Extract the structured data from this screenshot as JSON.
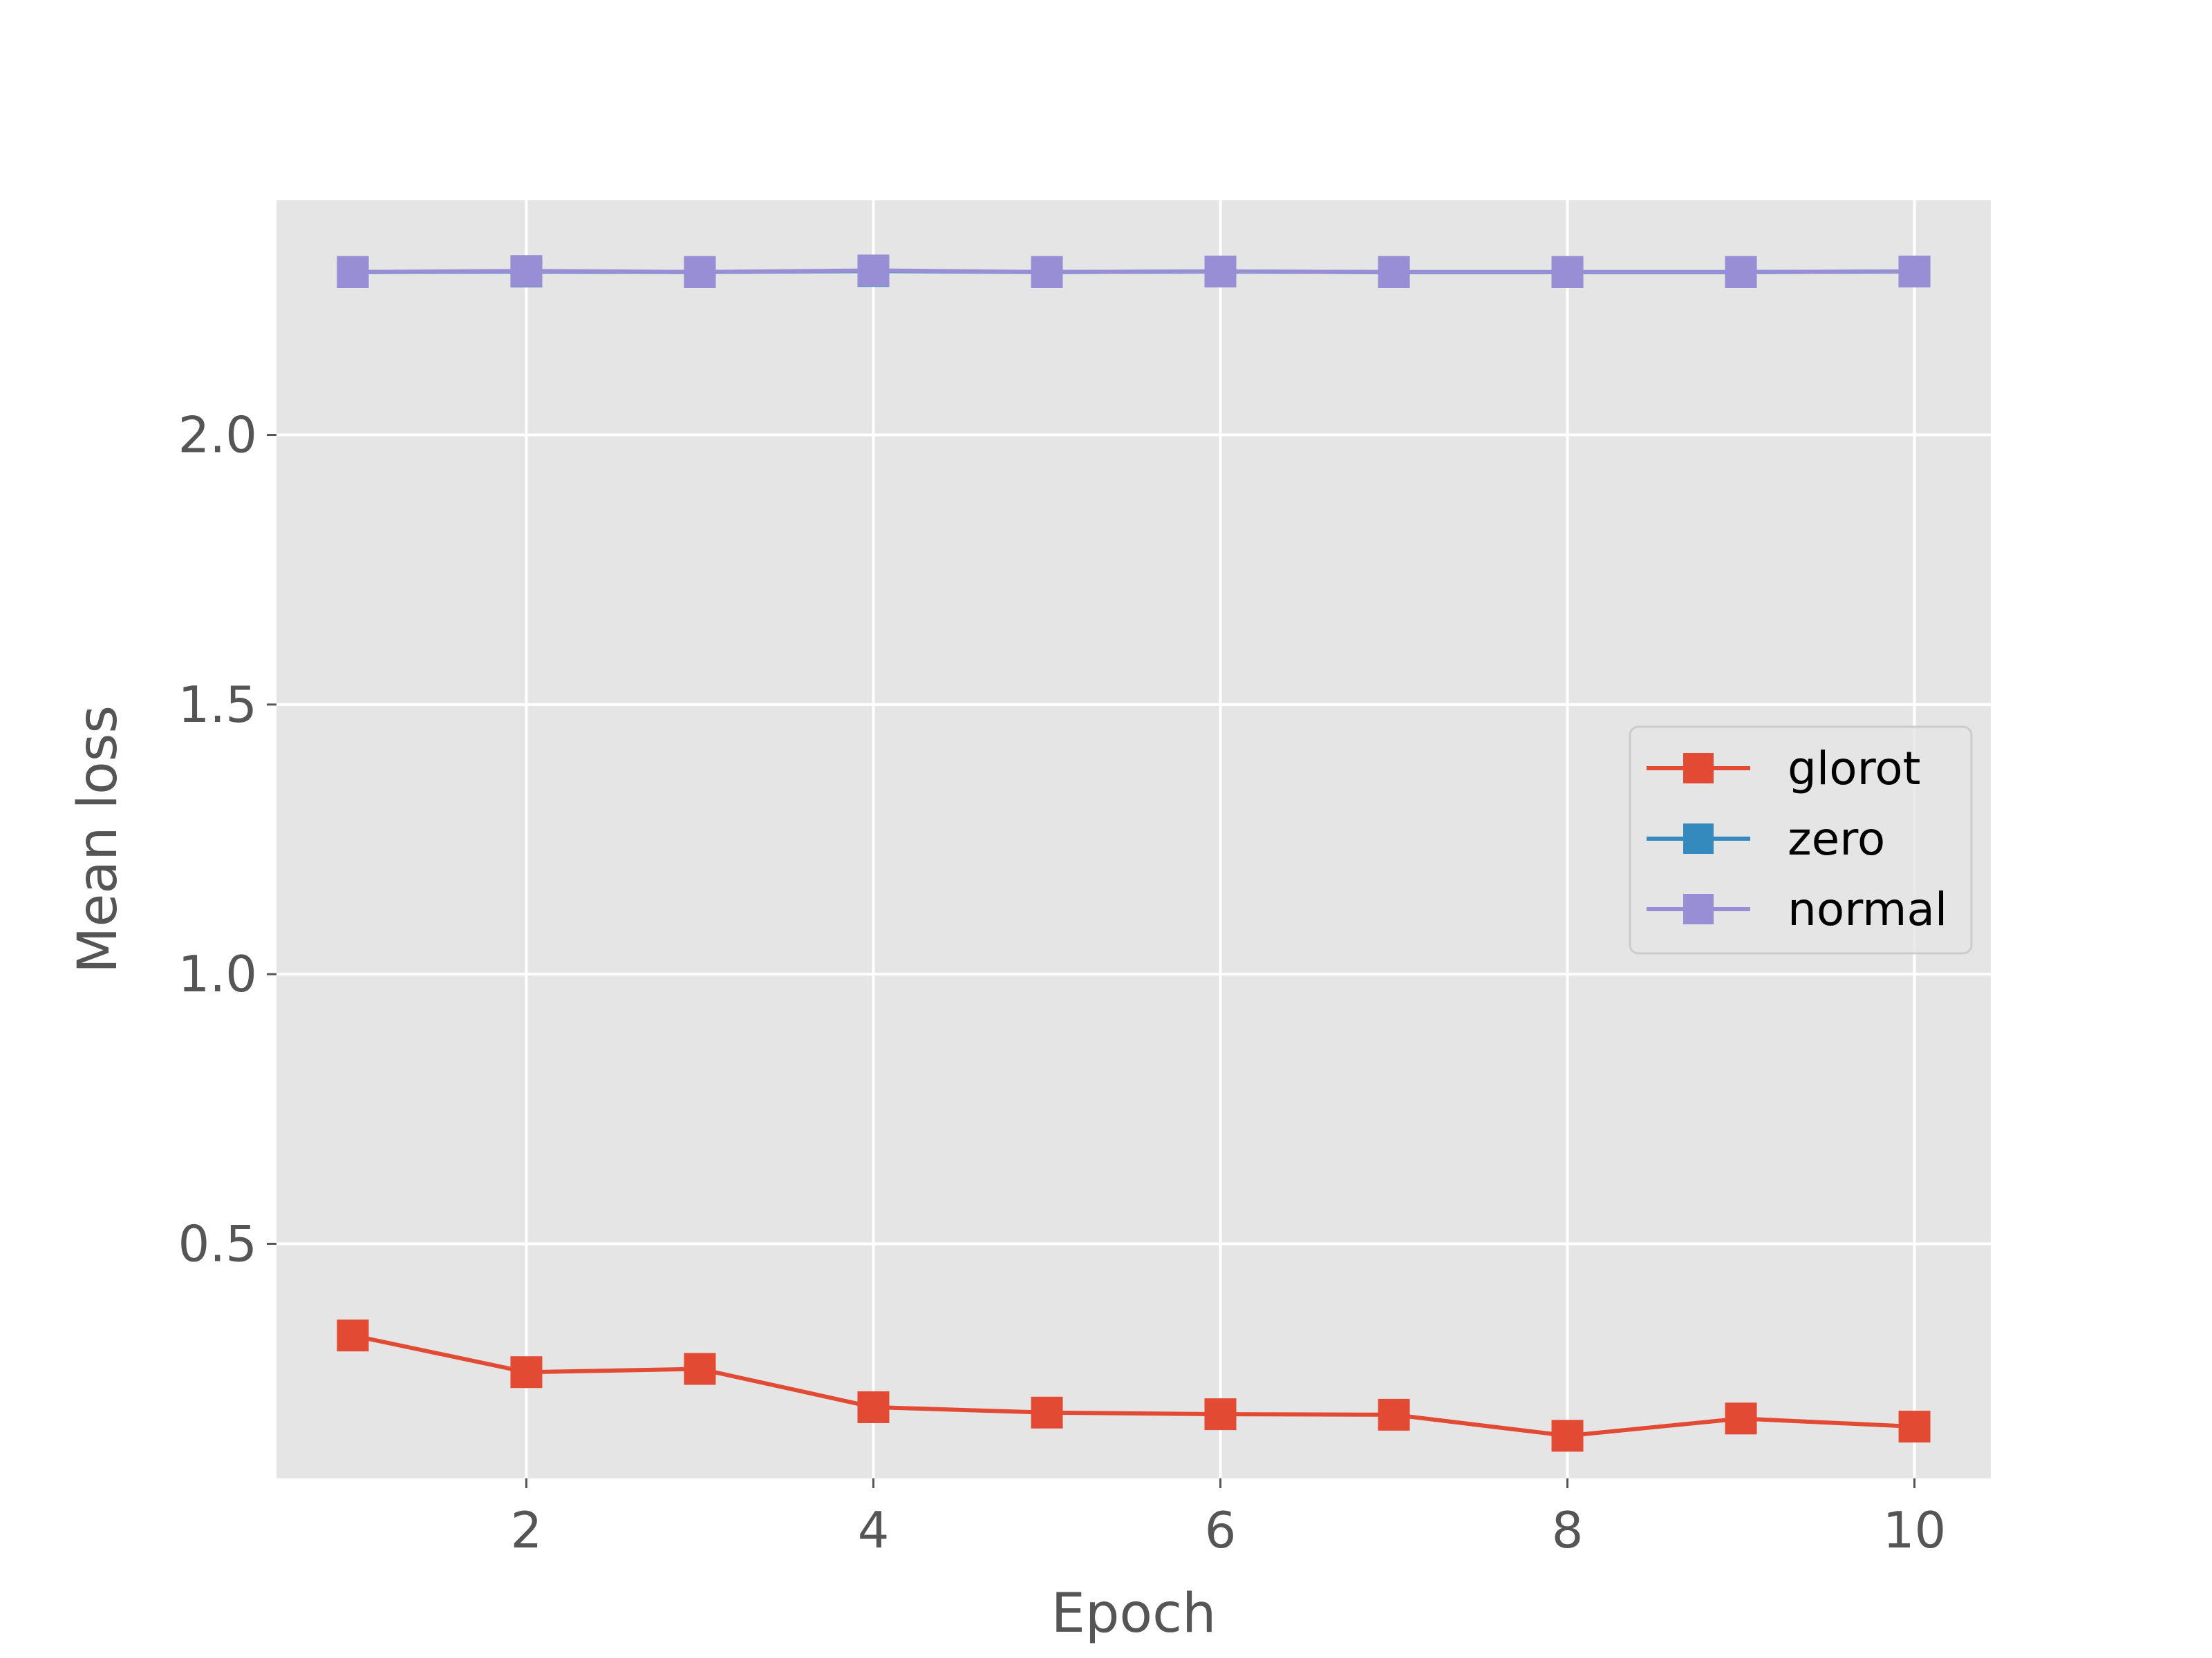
{
  "chart_data": {
    "type": "line",
    "title": "",
    "xlabel": "Epoch",
    "ylabel": "Mean loss",
    "x": [
      1,
      2,
      3,
      4,
      5,
      6,
      7,
      8,
      9,
      10
    ],
    "xlim": [
      0.56,
      10.44
    ],
    "ylim": [
      0.065,
      2.435
    ],
    "xticks": [
      2,
      4,
      6,
      8,
      10
    ],
    "xtick_labels": [
      "2",
      "4",
      "6",
      "8",
      "10"
    ],
    "yticks": [
      0.5,
      1.0,
      1.5,
      2.0
    ],
    "ytick_labels": [
      "0.5",
      "1.0",
      "1.5",
      "2.0"
    ],
    "grid": true,
    "legend_position": "center-right",
    "background_color": "#E5E5E5",
    "series": [
      {
        "name": "glorot",
        "color": "#E24A33",
        "marker": "square",
        "values": [
          0.33,
          0.262,
          0.268,
          0.197,
          0.187,
          0.184,
          0.183,
          0.144,
          0.176,
          0.161
        ]
      },
      {
        "name": "zero",
        "color": "#348ABD",
        "marker": "square",
        "values": [
          2.302,
          2.303,
          2.302,
          2.304,
          2.302,
          2.303,
          2.302,
          2.302,
          2.302,
          2.303
        ]
      },
      {
        "name": "normal",
        "color": "#988ED5",
        "marker": "square",
        "values": [
          2.302,
          2.304,
          2.302,
          2.305,
          2.302,
          2.303,
          2.302,
          2.302,
          2.302,
          2.303
        ]
      }
    ]
  }
}
